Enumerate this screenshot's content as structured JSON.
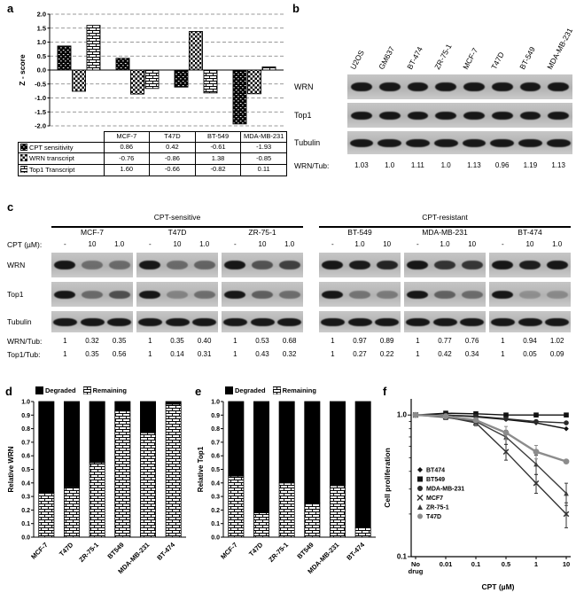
{
  "figure": {
    "panel_labels": {
      "a": "a",
      "b": "b",
      "c": "c",
      "d": "d",
      "e": "e",
      "f": "f"
    }
  },
  "panel_a": {
    "ylabel": "Z - score",
    "chart_data": {
      "type": "bar",
      "categories": [
        "MCF-7",
        "T47D",
        "BT-549",
        "MDA-MB-231"
      ],
      "series": [
        {
          "name": "CPT sensitivity",
          "pattern": "speckle",
          "values": [
            0.86,
            0.42,
            -0.61,
            -1.93
          ]
        },
        {
          "name": "WRN transcript",
          "pattern": "checker",
          "values": [
            -0.76,
            -0.86,
            1.38,
            -0.85
          ]
        },
        {
          "name": "Top1 Transcript",
          "pattern": "brick",
          "values": [
            1.6,
            -0.66,
            -0.82,
            0.11
          ]
        }
      ],
      "ylim": [
        -2.0,
        2.0
      ],
      "ytick_step": 0.5,
      "grid": "dashed-horizontal",
      "legend_position": "table-left"
    },
    "table": {
      "columns": [
        "MCF-7",
        "T47D",
        "BT-549",
        "MDA-MB-231"
      ],
      "rows": [
        {
          "label": "CPT sensitivity",
          "pattern": "speckle",
          "values": [
            "0.86",
            "0.42",
            "-0.61",
            "-1.93"
          ]
        },
        {
          "label": "WRN transcript",
          "pattern": "checker",
          "values": [
            "-0.76",
            "-0.86",
            "1.38",
            "-0.85"
          ]
        },
        {
          "label": "Top1 Transcript",
          "pattern": "brick",
          "values": [
            "1.60",
            "-0.66",
            "-0.82",
            "0.11"
          ]
        }
      ]
    }
  },
  "panel_b": {
    "lanes": [
      "U2OS",
      "GM637",
      "BT-474",
      "ZR-75-1",
      "MCF-7",
      "T47D",
      "BT-549",
      "MDA-MB-231"
    ],
    "blot_rows": [
      "WRN",
      "Top1",
      "Tubulin"
    ],
    "ratio_label": "WRN/Tub:",
    "ratios": [
      "1.03",
      "1.0",
      "1.11",
      "1.0",
      "1.13",
      "0.96",
      "1.19",
      "1.13"
    ]
  },
  "panel_c": {
    "cpt_label": "CPT (µM):",
    "blot_rows": [
      "WRN",
      "Top1",
      "Tubulin"
    ],
    "ratio_labels": [
      "WRN/Tub:",
      "Top1/Tub:"
    ],
    "groups": [
      {
        "title": "CPT-sensitive",
        "cell_lines": [
          {
            "name": "MCF-7",
            "cpt": [
              "-",
              "10",
              "1.0"
            ],
            "wrn_tub": [
              "1",
              "0.32",
              "0.35"
            ],
            "top1_tub": [
              "1",
              "0.35",
              "0.56"
            ]
          },
          {
            "name": "T47D",
            "cpt": [
              "-",
              "10",
              "1.0"
            ],
            "wrn_tub": [
              "1",
              "0.35",
              "0.40"
            ],
            "top1_tub": [
              "1",
              "0.14",
              "0.31"
            ]
          },
          {
            "name": "ZR-75-1",
            "cpt": [
              "-",
              "10",
              "1.0"
            ],
            "wrn_tub": [
              "1",
              "0.53",
              "0.68"
            ],
            "top1_tub": [
              "1",
              "0.43",
              "0.32"
            ]
          }
        ]
      },
      {
        "title": "CPT-resistant",
        "cell_lines": [
          {
            "name": "BT-549",
            "cpt": [
              "-",
              "1.0",
              "10"
            ],
            "wrn_tub": [
              "1",
              "0.97",
              "0.89"
            ],
            "top1_tub": [
              "1",
              "0.27",
              "0.22"
            ]
          },
          {
            "name": "MDA-MB-231",
            "cpt": [
              "-",
              "1.0",
              "10"
            ],
            "wrn_tub": [
              "1",
              "0.77",
              "0.76"
            ],
            "top1_tub": [
              "1",
              "0.42",
              "0.34"
            ]
          },
          {
            "name": "BT-474",
            "cpt": [
              "-",
              "10",
              "1.0"
            ],
            "wrn_tub": [
              "1",
              "0.94",
              "1.02"
            ],
            "top1_tub": [
              "1",
              "0.05",
              "0.09"
            ]
          }
        ]
      }
    ]
  },
  "panel_d": {
    "chart_data": {
      "type": "stacked-bar",
      "ylabel": "Relative WRN",
      "categories": [
        "MCF-7",
        "T47D",
        "ZR-75-1",
        "BT549",
        "MDA-MB-231",
        "BT-474"
      ],
      "series": [
        {
          "name": "Degraded",
          "pattern": "solid"
        },
        {
          "name": "Remaining",
          "pattern": "brick"
        }
      ],
      "remaining": [
        0.33,
        0.37,
        0.55,
        0.93,
        0.77,
        0.98
      ],
      "stack_total": 1.0,
      "ylim": [
        0,
        1.0
      ],
      "ytick_step": 0.1
    }
  },
  "panel_e": {
    "chart_data": {
      "type": "stacked-bar",
      "ylabel": "Relative Top1",
      "categories": [
        "MCF-7",
        "T47D",
        "ZR-75-1",
        "BT549",
        "MDA-MB-231",
        "BT-474"
      ],
      "series": [
        {
          "name": "Degraded",
          "pattern": "solid"
        },
        {
          "name": "Remaining",
          "pattern": "brick"
        }
      ],
      "remaining": [
        0.45,
        0.18,
        0.4,
        0.25,
        0.38,
        0.07
      ],
      "stack_total": 1.0,
      "ylim": [
        0,
        1.0
      ],
      "ytick_step": 0.1
    }
  },
  "panel_f": {
    "chart_data": {
      "type": "line",
      "ylabel": "Cell proliferation",
      "xlabel": "CPT (µM)",
      "x_categories": [
        "No drug",
        "0.01",
        "0.1",
        "0.5",
        "1",
        "10"
      ],
      "yscale": "log",
      "ylim": [
        0.1,
        1.3
      ],
      "ytick_labels": [
        "1.0",
        "0.1"
      ],
      "series": [
        {
          "name": "BT474",
          "marker": "diamond",
          "color": "#111111",
          "values": [
            1.0,
            1.0,
            0.97,
            0.93,
            0.88,
            0.8
          ],
          "errors": [
            0,
            0,
            0,
            0,
            0,
            0
          ]
        },
        {
          "name": "BT549",
          "marker": "square",
          "color": "#111111",
          "values": [
            1.0,
            1.03,
            1.02,
            1.0,
            1.0,
            1.0
          ],
          "errors": [
            0,
            0,
            0,
            0,
            0,
            0
          ]
        },
        {
          "name": "MDA-MB-231",
          "marker": "circle",
          "color": "#2a2a2a",
          "values": [
            1.0,
            1.0,
            0.98,
            0.94,
            0.9,
            0.88
          ],
          "errors": [
            0,
            0,
            0,
            0,
            0,
            0
          ]
        },
        {
          "name": "MCF7",
          "marker": "x",
          "color": "#333333",
          "values": [
            1.0,
            0.97,
            0.88,
            0.55,
            0.33,
            0.2
          ],
          "errors": [
            0,
            0,
            0.04,
            0.07,
            0.05,
            0.04
          ]
        },
        {
          "name": "ZR-75-1",
          "marker": "triangle",
          "color": "#3d3d3d",
          "values": [
            1.0,
            0.96,
            0.9,
            0.7,
            0.45,
            0.28
          ],
          "errors": [
            0,
            0,
            0,
            0.08,
            0.07,
            0.05
          ]
        },
        {
          "name": "T47D",
          "marker": "circle",
          "color": "#8c8c8c",
          "values": [
            1.0,
            0.98,
            0.92,
            0.75,
            0.55,
            0.47
          ],
          "errors": [
            0,
            0,
            0,
            0.08,
            0.06,
            0
          ]
        }
      ],
      "legend_order": [
        "BT474",
        "BT549",
        "MDA-MB-231",
        "MCF7",
        "ZR-75-1",
        "T47D"
      ],
      "legend_position": "inside-left-middle"
    }
  }
}
